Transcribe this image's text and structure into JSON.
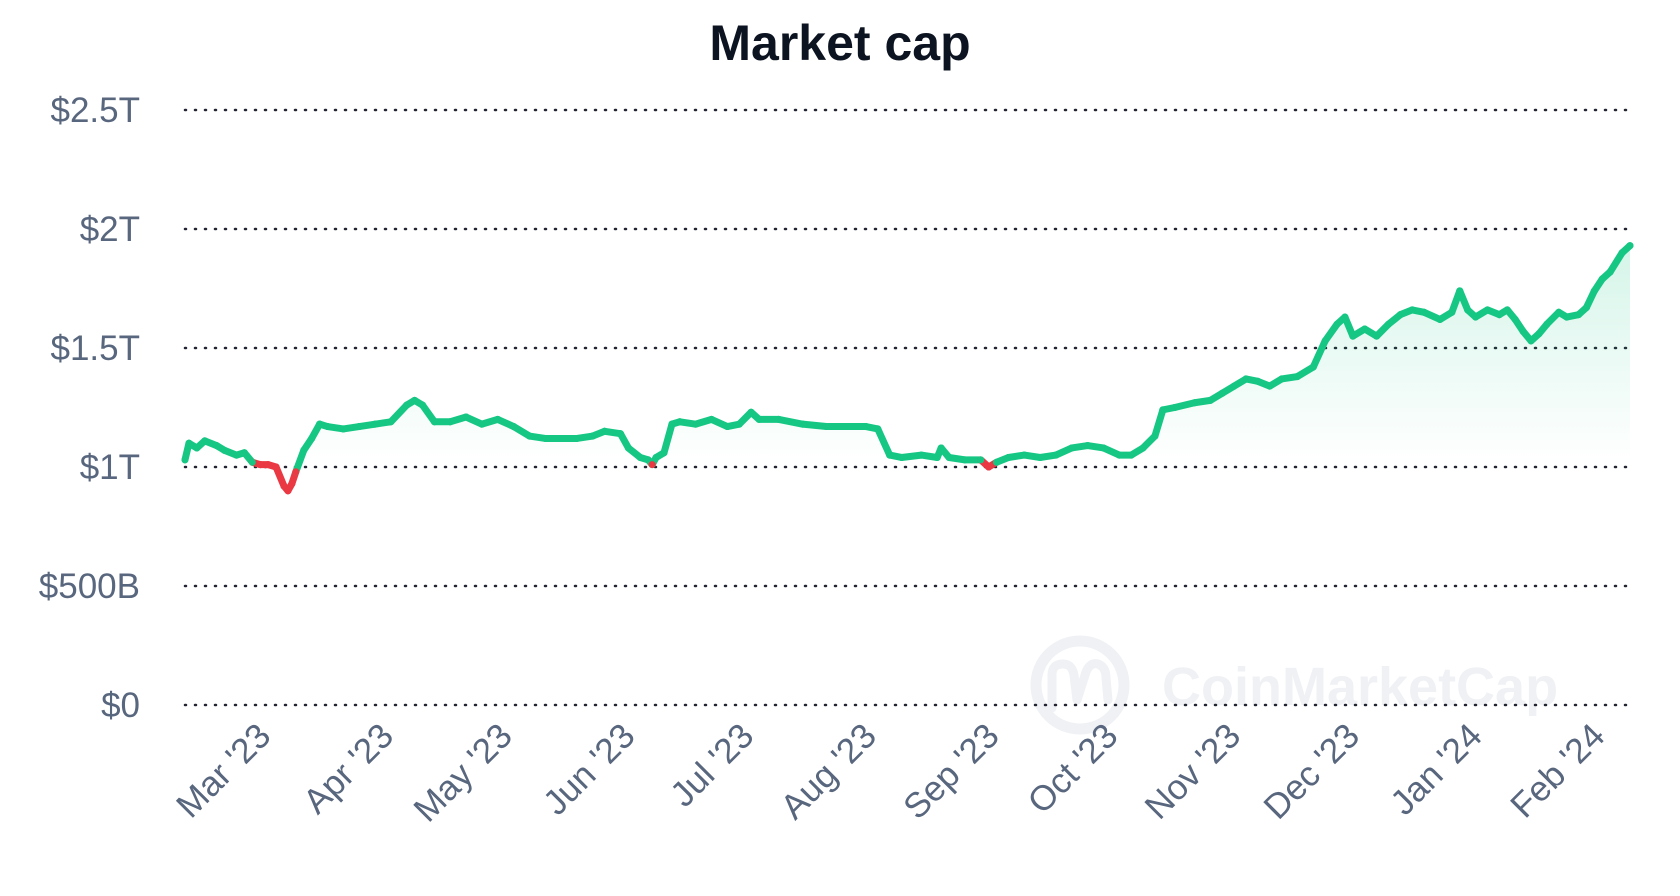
{
  "chart_data": {
    "type": "line",
    "title": "Market cap",
    "xlabel": "",
    "ylabel": "",
    "y_ticks": [
      "$0",
      "$500B",
      "$1T",
      "$1.5T",
      "$2T",
      "$2.5T"
    ],
    "y_tick_values": [
      0,
      0.5,
      1,
      1.5,
      2,
      2.5
    ],
    "ylim": [
      0,
      2.5
    ],
    "y_unit": "trillion USD",
    "x_ticks": [
      "Mar '23",
      "Apr '23",
      "May '23",
      "Jun '23",
      "Jul '23",
      "Aug '23",
      "Sep '23",
      "Oct '23",
      "Nov '23",
      "Dec '23",
      "Jan '24",
      "Feb '24"
    ],
    "x_tick_dates": [
      "2023-03-01",
      "2023-04-01",
      "2023-05-01",
      "2023-06-01",
      "2023-07-01",
      "2023-08-01",
      "2023-09-01",
      "2023-10-01",
      "2023-11-01",
      "2023-12-01",
      "2024-01-01",
      "2024-02-01"
    ],
    "xlim": [
      "2023-02-20",
      "2024-02-20"
    ],
    "grid": true,
    "legend": "none",
    "baseline": 1.02,
    "colors": {
      "up": "#16c784",
      "down": "#ea3943",
      "fill": "#16c784",
      "grid": "#222531",
      "tick_text": "#58667e",
      "title_text": "#0d1421",
      "watermark": "#eff1f4"
    },
    "series": [
      {
        "points": [
          [
            "2023-02-20",
            1.03
          ],
          [
            "2023-02-21",
            1.1
          ],
          [
            "2023-02-23",
            1.08
          ],
          [
            "2023-02-25",
            1.11
          ],
          [
            "2023-02-28",
            1.09
          ],
          [
            "2023-03-02",
            1.07
          ],
          [
            "2023-03-05",
            1.05
          ],
          [
            "2023-03-07",
            1.06
          ],
          [
            "2023-03-09",
            1.02
          ],
          [
            "2023-03-11",
            1.01
          ],
          [
            "2023-03-13",
            1.01
          ],
          [
            "2023-03-15",
            1.0
          ],
          [
            "2023-03-17",
            0.92
          ],
          [
            "2023-03-18",
            0.9
          ],
          [
            "2023-03-19",
            0.93
          ],
          [
            "2023-03-20",
            0.98
          ],
          [
            "2023-03-22",
            1.07
          ],
          [
            "2023-03-24",
            1.12
          ],
          [
            "2023-03-26",
            1.18
          ],
          [
            "2023-03-28",
            1.17
          ],
          [
            "2023-04-01",
            1.16
          ],
          [
            "2023-04-05",
            1.17
          ],
          [
            "2023-04-09",
            1.18
          ],
          [
            "2023-04-13",
            1.19
          ],
          [
            "2023-04-17",
            1.26
          ],
          [
            "2023-04-19",
            1.28
          ],
          [
            "2023-04-21",
            1.26
          ],
          [
            "2023-04-24",
            1.19
          ],
          [
            "2023-04-28",
            1.19
          ],
          [
            "2023-05-02",
            1.21
          ],
          [
            "2023-05-06",
            1.18
          ],
          [
            "2023-05-10",
            1.2
          ],
          [
            "2023-05-14",
            1.17
          ],
          [
            "2023-05-18",
            1.13
          ],
          [
            "2023-05-22",
            1.12
          ],
          [
            "2023-05-26",
            1.12
          ],
          [
            "2023-05-30",
            1.12
          ],
          [
            "2023-06-03",
            1.13
          ],
          [
            "2023-06-06",
            1.15
          ],
          [
            "2023-06-10",
            1.14
          ],
          [
            "2023-06-12",
            1.08
          ],
          [
            "2023-06-15",
            1.04
          ],
          [
            "2023-06-17",
            1.03
          ],
          [
            "2023-06-18",
            1.01
          ],
          [
            "2023-06-19",
            1.04
          ],
          [
            "2023-06-21",
            1.06
          ],
          [
            "2023-06-23",
            1.18
          ],
          [
            "2023-06-25",
            1.19
          ],
          [
            "2023-06-29",
            1.18
          ],
          [
            "2023-07-03",
            1.2
          ],
          [
            "2023-07-07",
            1.17
          ],
          [
            "2023-07-10",
            1.18
          ],
          [
            "2023-07-13",
            1.23
          ],
          [
            "2023-07-15",
            1.2
          ],
          [
            "2023-07-20",
            1.2
          ],
          [
            "2023-07-26",
            1.18
          ],
          [
            "2023-08-01",
            1.17
          ],
          [
            "2023-08-07",
            1.17
          ],
          [
            "2023-08-11",
            1.17
          ],
          [
            "2023-08-14",
            1.16
          ],
          [
            "2023-08-17",
            1.05
          ],
          [
            "2023-08-20",
            1.04
          ],
          [
            "2023-08-25",
            1.05
          ],
          [
            "2023-08-29",
            1.04
          ],
          [
            "2023-08-30",
            1.08
          ],
          [
            "2023-09-01",
            1.04
          ],
          [
            "2023-09-05",
            1.03
          ],
          [
            "2023-09-09",
            1.03
          ],
          [
            "2023-09-11",
            1.0
          ],
          [
            "2023-09-13",
            1.02
          ],
          [
            "2023-09-16",
            1.04
          ],
          [
            "2023-09-20",
            1.05
          ],
          [
            "2023-09-24",
            1.04
          ],
          [
            "2023-09-28",
            1.05
          ],
          [
            "2023-10-02",
            1.08
          ],
          [
            "2023-10-06",
            1.09
          ],
          [
            "2023-10-10",
            1.08
          ],
          [
            "2023-10-14",
            1.05
          ],
          [
            "2023-10-17",
            1.05
          ],
          [
            "2023-10-20",
            1.08
          ],
          [
            "2023-10-23",
            1.13
          ],
          [
            "2023-10-25",
            1.24
          ],
          [
            "2023-10-28",
            1.25
          ],
          [
            "2023-11-02",
            1.27
          ],
          [
            "2023-11-06",
            1.28
          ],
          [
            "2023-11-09",
            1.31
          ],
          [
            "2023-11-12",
            1.34
          ],
          [
            "2023-11-15",
            1.37
          ],
          [
            "2023-11-18",
            1.36
          ],
          [
            "2023-11-21",
            1.34
          ],
          [
            "2023-11-24",
            1.37
          ],
          [
            "2023-11-28",
            1.38
          ],
          [
            "2023-12-02",
            1.42
          ],
          [
            "2023-12-05",
            1.53
          ],
          [
            "2023-12-08",
            1.6
          ],
          [
            "2023-12-10",
            1.63
          ],
          [
            "2023-12-12",
            1.55
          ],
          [
            "2023-12-15",
            1.58
          ],
          [
            "2023-12-18",
            1.55
          ],
          [
            "2023-12-21",
            1.6
          ],
          [
            "2023-12-24",
            1.64
          ],
          [
            "2023-12-27",
            1.66
          ],
          [
            "2023-12-30",
            1.65
          ],
          [
            "2024-01-03",
            1.62
          ],
          [
            "2024-01-06",
            1.65
          ],
          [
            "2024-01-08",
            1.74
          ],
          [
            "2024-01-10",
            1.66
          ],
          [
            "2024-01-12",
            1.63
          ],
          [
            "2024-01-15",
            1.66
          ],
          [
            "2024-01-18",
            1.64
          ],
          [
            "2024-01-20",
            1.66
          ],
          [
            "2024-01-22",
            1.62
          ],
          [
            "2024-01-24",
            1.57
          ],
          [
            "2024-01-26",
            1.53
          ],
          [
            "2024-01-28",
            1.56
          ],
          [
            "2024-01-30",
            1.6
          ],
          [
            "2024-02-02",
            1.65
          ],
          [
            "2024-02-04",
            1.63
          ],
          [
            "2024-02-07",
            1.64
          ],
          [
            "2024-02-09",
            1.67
          ],
          [
            "2024-02-11",
            1.74
          ],
          [
            "2024-02-13",
            1.79
          ],
          [
            "2024-02-15",
            1.82
          ],
          [
            "2024-02-18",
            1.9
          ],
          [
            "2024-02-20",
            1.93
          ]
        ]
      }
    ]
  },
  "watermark": {
    "text": "CoinMarketCap",
    "logo_icon": "coinmarketcap-logo-icon"
  }
}
